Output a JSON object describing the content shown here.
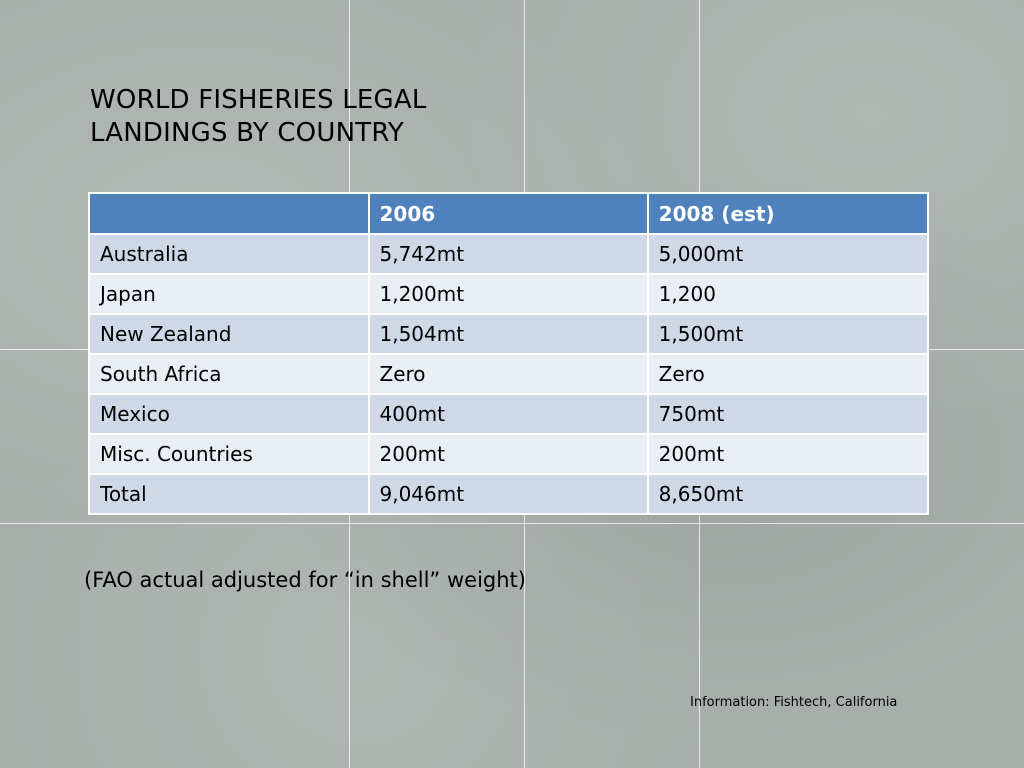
{
  "title": "World Fisheries Legal Landings by Country",
  "table": {
    "headers": [
      "",
      "2006",
      "2008 (est)"
    ],
    "rows": [
      {
        "country": "Australia",
        "y2006": "5,742mt",
        "y2008": "5,000mt"
      },
      {
        "country": "Japan",
        "y2006": "1,200mt",
        "y2008": "1,200"
      },
      {
        "country": "New Zealand",
        "y2006": "1,504mt",
        "y2008": "1,500mt"
      },
      {
        "country": "South Africa",
        "y2006": "Zero",
        "y2008": "Zero"
      },
      {
        "country": "Mexico",
        "y2006": "400mt",
        "y2008": "750mt"
      },
      {
        "country": "Misc. Countries",
        "y2006": "200mt",
        "y2008": "200mt"
      },
      {
        "country": "Total",
        "y2006": "9,046mt",
        "y2008": "8,650mt"
      }
    ]
  },
  "note": "(FAO actual adjusted for “in shell” weight)",
  "source": "Information: Fishtech, California",
  "colors": {
    "header_fill": "#4f81bd",
    "row_fill_dark": "#d0d8e8",
    "row_fill_light": "#e9edf4",
    "background": "#a9b0ac"
  }
}
